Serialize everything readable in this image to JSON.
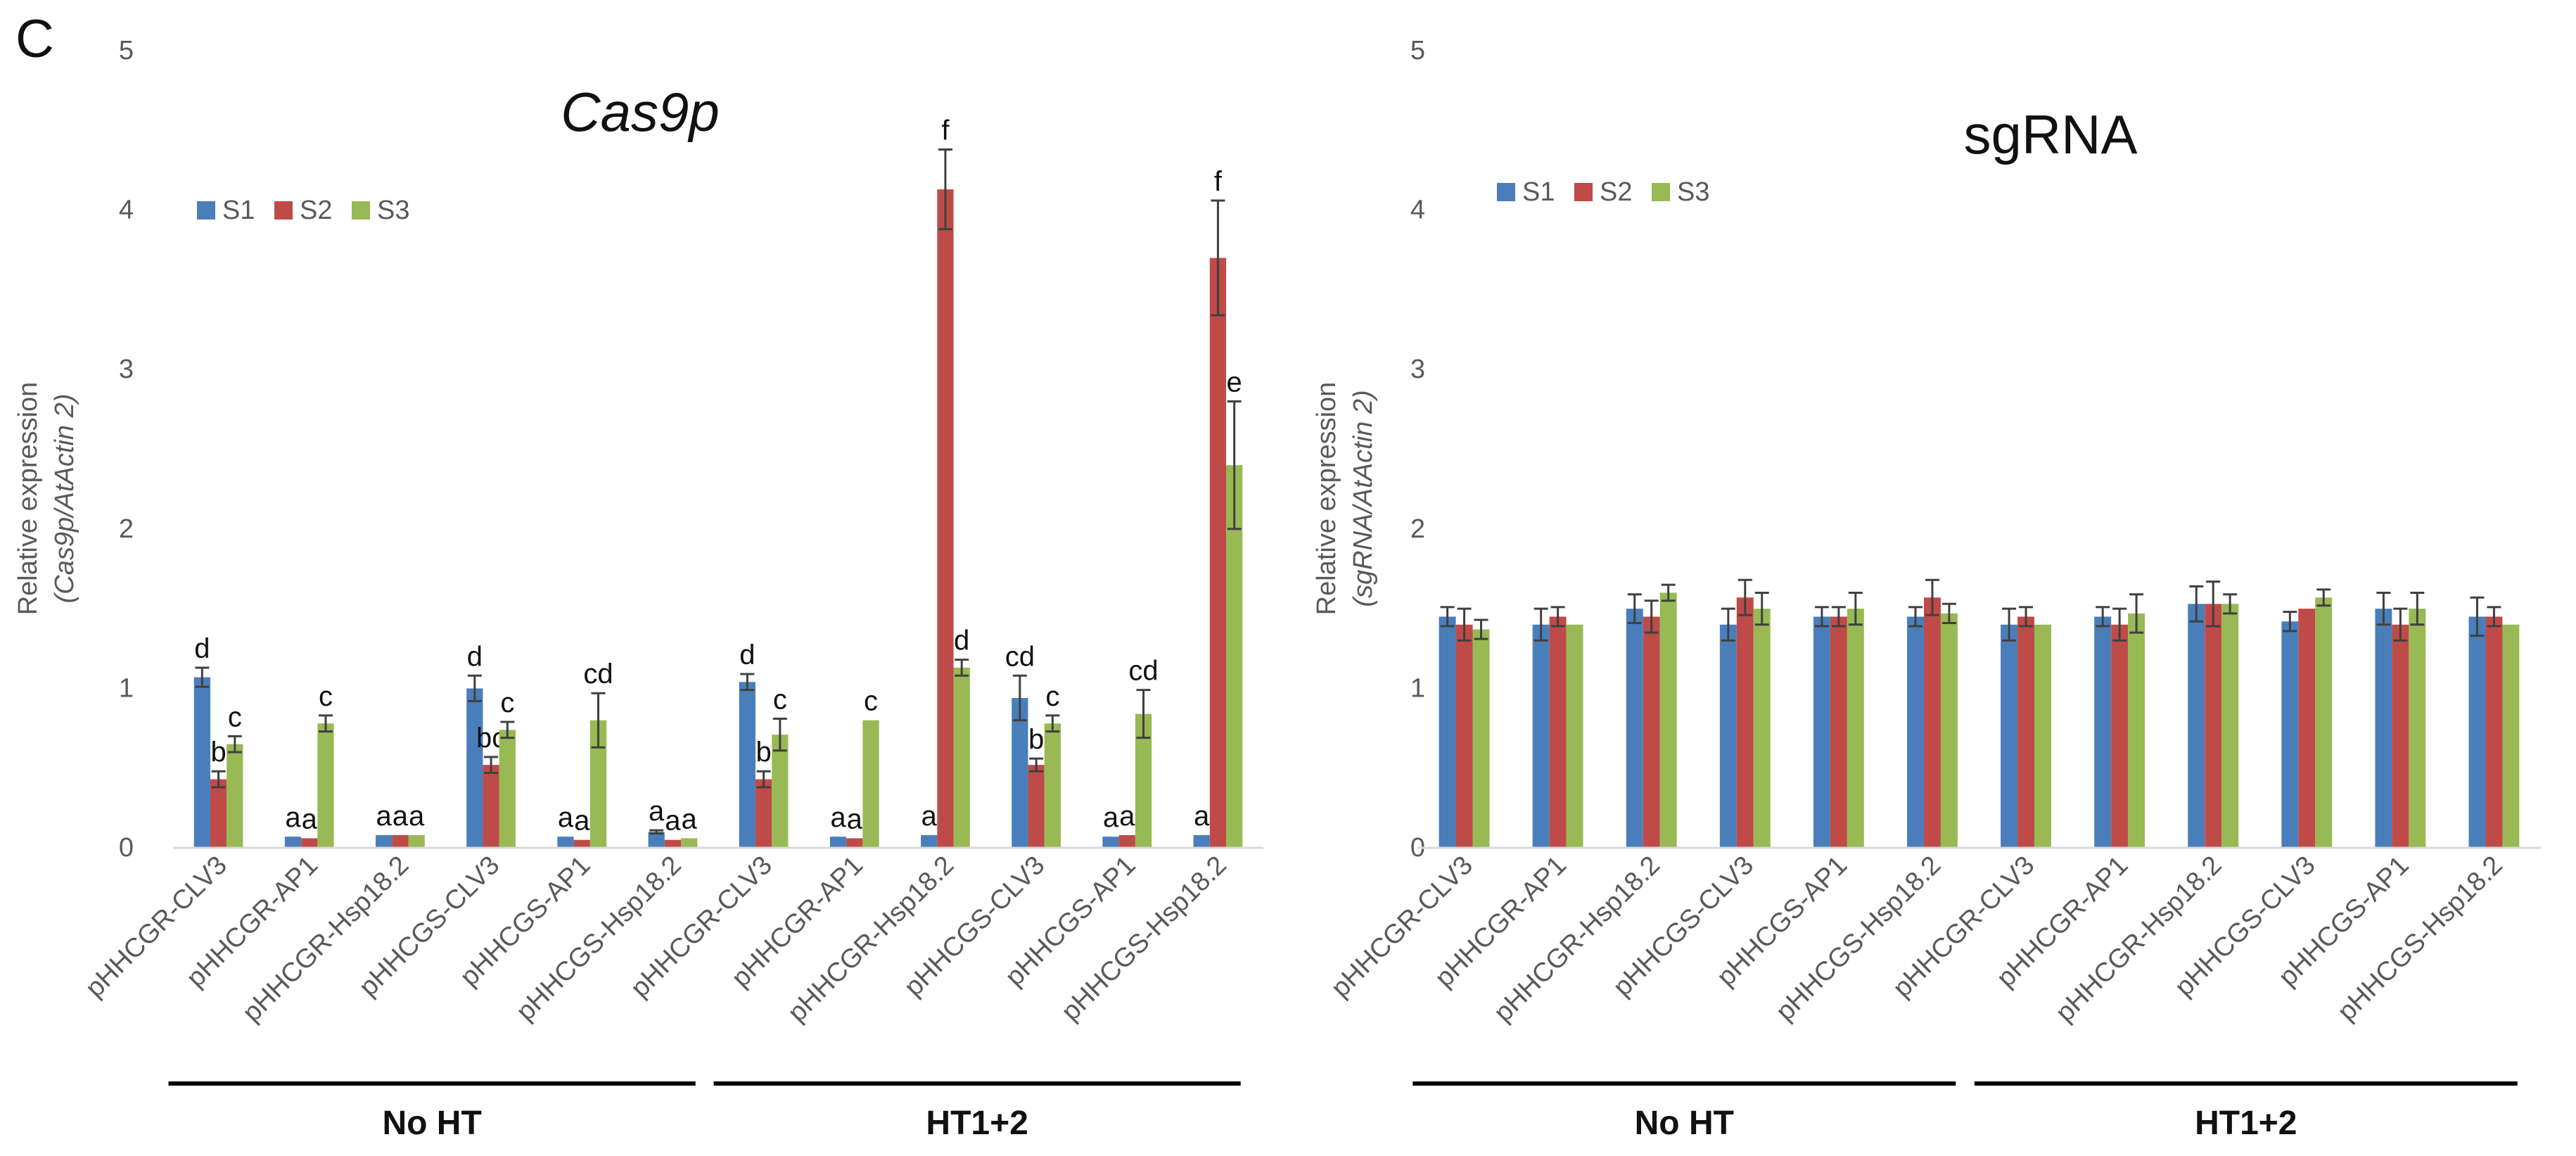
{
  "panel_label": "C",
  "colors": {
    "S1": "#4A7EBB",
    "S2": "#BE4B48",
    "S3": "#98B954",
    "axis": "#D9D9D9",
    "text": "#595959",
    "error": "#404040"
  },
  "chart_data": [
    {
      "type": "bar",
      "title": "Cas9p",
      "title_italic": true,
      "ylabel_main": "Relative expression",
      "ylabel_sub": "(Cas9p/AtActin 2)",
      "ylim": [
        0,
        5
      ],
      "yticks": [
        "0",
        "1",
        "2",
        "3",
        "4",
        "5"
      ],
      "legend": [
        "S1",
        "S2",
        "S3"
      ],
      "categories": [
        "pHHCGR-CLV3",
        "pHHCGR-AP1",
        "pHHCGR-Hsp18.2",
        "pHHCGS-CLV3",
        "pHHCGS-AP1",
        "pHHCGS-Hsp18.2",
        "pHHCGR-CLV3",
        "pHHCGR-AP1",
        "pHHCGR-Hsp18.2",
        "pHHCGS-CLV3",
        "pHHCGS-AP1",
        "pHHCGS-Hsp18.2"
      ],
      "groups": [
        {
          "label": "No HT",
          "from": 0,
          "to": 5
        },
        {
          "label": "HT1+2",
          "from": 6,
          "to": 11
        }
      ],
      "series": [
        {
          "name": "S1",
          "values": [
            1.07,
            0.07,
            0.08,
            1.0,
            0.07,
            0.1,
            1.04,
            0.07,
            0.08,
            0.94,
            0.07,
            0.08
          ],
          "errors": [
            0.06,
            0.0,
            0.0,
            0.08,
            0.0,
            0.01,
            0.05,
            0.0,
            0.0,
            0.14,
            0.0,
            0.0
          ],
          "labels": [
            "d",
            "a",
            "a",
            "d",
            "a",
            "a",
            "d",
            "a",
            "a",
            "cd",
            "a",
            "a"
          ]
        },
        {
          "name": "S2",
          "values": [
            0.43,
            0.06,
            0.08,
            0.52,
            0.05,
            0.05,
            0.43,
            0.06,
            4.13,
            0.52,
            0.08,
            3.7
          ],
          "errors": [
            0.05,
            0.0,
            0.0,
            0.05,
            0.0,
            0.0,
            0.05,
            0.0,
            0.25,
            0.04,
            0.0,
            0.36
          ],
          "labels": [
            "b",
            "a",
            "a",
            "bc",
            "a",
            "a",
            "b",
            "a",
            "f",
            "b",
            "a",
            "f"
          ]
        },
        {
          "name": "S3",
          "values": [
            0.65,
            0.78,
            0.08,
            0.74,
            0.8,
            0.06,
            0.71,
            0.8,
            1.13,
            0.78,
            0.84,
            2.4
          ],
          "errors": [
            0.05,
            0.05,
            0.0,
            0.05,
            0.17,
            0.0,
            0.1,
            0.0,
            0.05,
            0.05,
            0.15,
            0.4
          ],
          "labels": [
            "c",
            "c",
            "a",
            "c",
            "cd",
            "a",
            "c",
            "c",
            "d",
            "c",
            "cd",
            "e"
          ]
        }
      ]
    },
    {
      "type": "bar",
      "title": "sgRNA",
      "title_italic": false,
      "ylabel_main": "Relative expression",
      "ylabel_sub": "(sgRNA/AtActin 2)",
      "ylim": [
        0,
        5
      ],
      "yticks": [
        "0",
        "1",
        "2",
        "3",
        "4",
        "5"
      ],
      "legend": [
        "S1",
        "S2",
        "S3"
      ],
      "categories": [
        "pHHCGR-CLV3",
        "pHHCGR-AP1",
        "pHHCGR-Hsp18.2",
        "pHHCGS-CLV3",
        "pHHCGS-AP1",
        "pHHCGS-Hsp18.2",
        "pHHCGR-CLV3",
        "pHHCGR-AP1",
        "pHHCGR-Hsp18.2",
        "pHHCGS-CLV3",
        "pHHCGS-AP1",
        "pHHCGS-Hsp18.2"
      ],
      "groups": [
        {
          "label": "No HT",
          "from": 0,
          "to": 5
        },
        {
          "label": "HT1+2",
          "from": 6,
          "to": 11
        }
      ],
      "series": [
        {
          "name": "S1",
          "values": [
            1.45,
            1.4,
            1.5,
            1.4,
            1.45,
            1.45,
            1.4,
            1.45,
            1.53,
            1.42,
            1.5,
            1.45
          ],
          "errors": [
            0.06,
            0.1,
            0.09,
            0.1,
            0.06,
            0.06,
            0.1,
            0.06,
            0.11,
            0.06,
            0.1,
            0.12
          ]
        },
        {
          "name": "S2",
          "values": [
            1.4,
            1.45,
            1.45,
            1.57,
            1.45,
            1.57,
            1.45,
            1.4,
            1.53,
            1.5,
            1.4,
            1.45
          ],
          "errors": [
            0.1,
            0.06,
            0.1,
            0.11,
            0.06,
            0.11,
            0.06,
            0.1,
            0.14,
            0.0,
            0.1,
            0.06
          ]
        },
        {
          "name": "S3",
          "values": [
            1.37,
            1.4,
            1.6,
            1.5,
            1.5,
            1.47,
            1.4,
            1.47,
            1.53,
            1.57,
            1.5,
            1.4
          ],
          "errors": [
            0.06,
            0.0,
            0.05,
            0.1,
            0.1,
            0.06,
            0.0,
            0.12,
            0.06,
            0.05,
            0.1,
            0.0
          ]
        }
      ]
    }
  ]
}
